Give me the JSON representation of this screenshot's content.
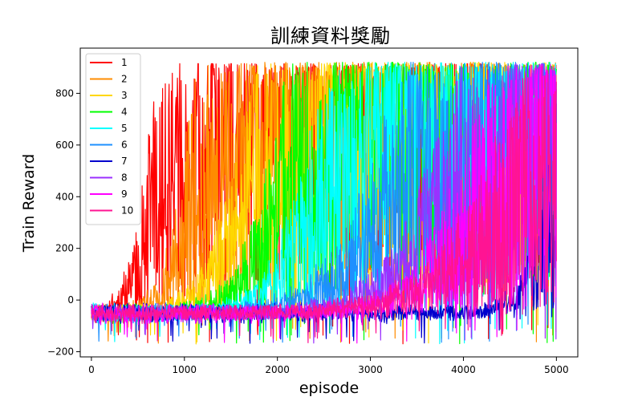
{
  "chart_data": {
    "type": "line",
    "title": "訓練資料獎勵",
    "xlabel": "episode",
    "ylabel": "Train Reward",
    "xlim": [
      -120,
      5230
    ],
    "ylim": [
      -220,
      975
    ],
    "xticks": [
      0,
      1000,
      2000,
      3000,
      4000,
      5000
    ],
    "yticks": [
      -200,
      0,
      200,
      400,
      600,
      800
    ],
    "grid": false,
    "legend_position": "top-left",
    "episodes": 5000,
    "series": [
      {
        "name": "1",
        "color": "#ff0000",
        "start_reward": -50,
        "max_reward": 910,
        "rise_start": 150,
        "rise_mid": 640,
        "rise_end": 1250
      },
      {
        "name": "2",
        "color": "#ff8c00",
        "start_reward": -50,
        "max_reward": 915,
        "rise_start": 250,
        "rise_mid": 1050,
        "rise_end": 1550
      },
      {
        "name": "3",
        "color": "#ffd700",
        "start_reward": -50,
        "max_reward": 915,
        "rise_start": 400,
        "rise_mid": 1650,
        "rise_end": 2450
      },
      {
        "name": "4",
        "color": "#00ff00",
        "start_reward": -50,
        "max_reward": 915,
        "rise_start": 550,
        "rise_mid": 2000,
        "rise_end": 2600
      },
      {
        "name": "5",
        "color": "#00ffff",
        "start_reward": -50,
        "max_reward": 915,
        "rise_start": 700,
        "rise_mid": 2400,
        "rise_end": 2950
      },
      {
        "name": "6",
        "color": "#1e90ff",
        "start_reward": -50,
        "max_reward": 915,
        "rise_start": 900,
        "rise_mid": 3150,
        "rise_end": 4000
      },
      {
        "name": "7",
        "color": "#0000cd",
        "start_reward": -50,
        "max_reward": 900,
        "rise_start": 3600,
        "rise_mid": 4950,
        "rise_end": 5000
      },
      {
        "name": "8",
        "color": "#9b30ff",
        "start_reward": -50,
        "max_reward": 915,
        "rise_start": 1200,
        "rise_mid": 3800,
        "rise_end": 4500
      },
      {
        "name": "9",
        "color": "#ff00ff",
        "start_reward": -50,
        "max_reward": 910,
        "rise_start": 1500,
        "rise_mid": 4150,
        "rise_end": 4700
      },
      {
        "name": "10",
        "color": "#ff1493",
        "start_reward": -50,
        "max_reward": 900,
        "rise_start": 800,
        "rise_mid": 4450,
        "rise_end": 5000
      }
    ]
  }
}
